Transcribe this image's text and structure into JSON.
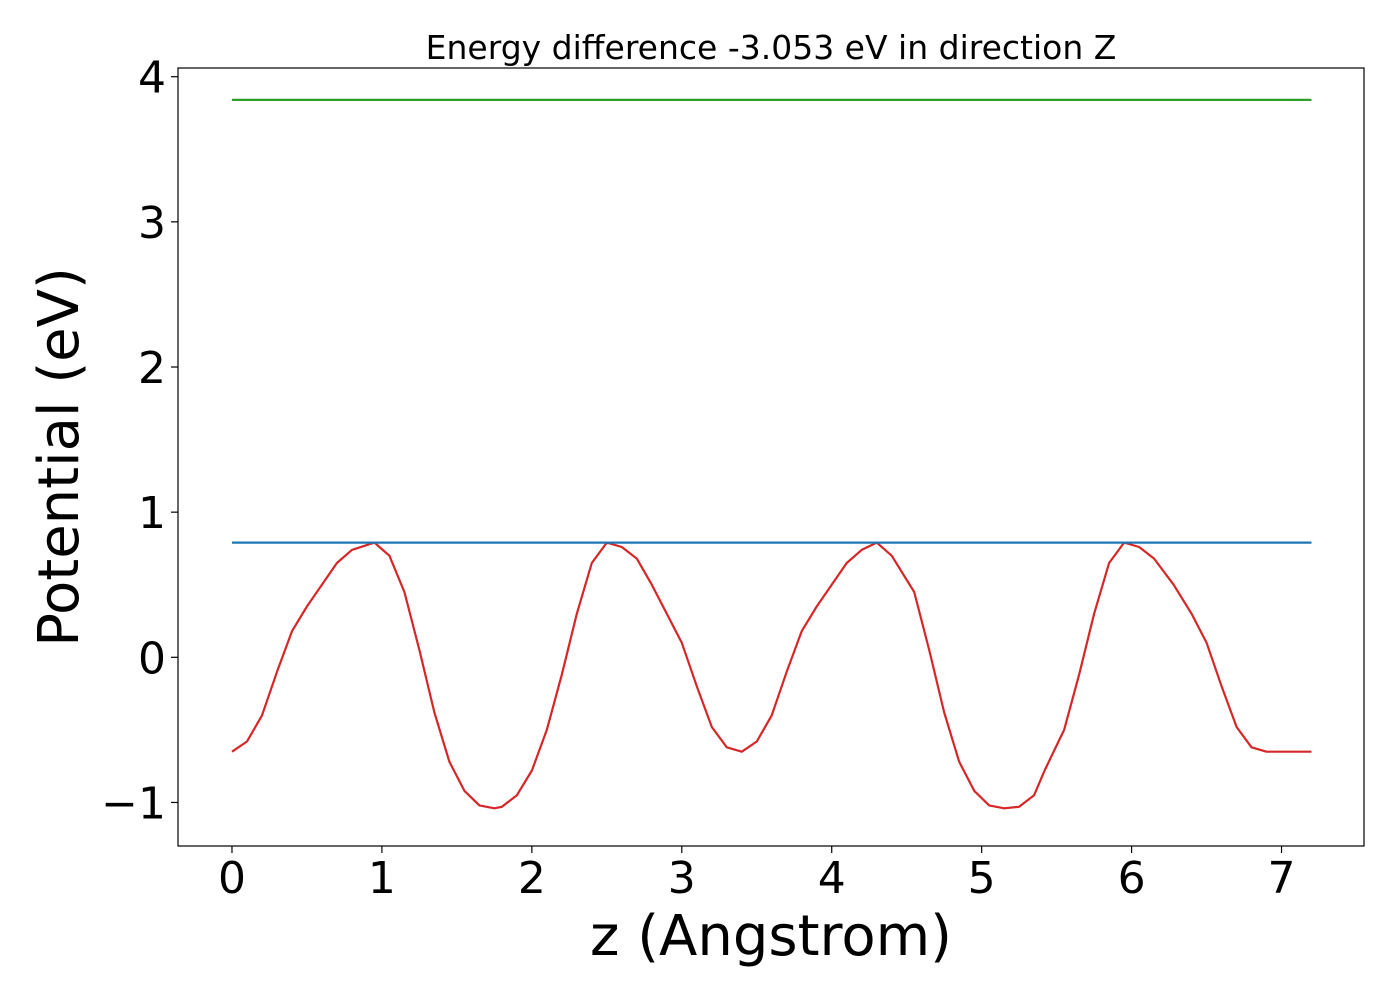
{
  "chart_data": {
    "type": "line",
    "title": "Energy difference -3.053 eV in direction Z",
    "xlabel": "z (Angstrom)",
    "ylabel": "Potential (eV)",
    "xlim": [
      -0.36,
      7.55
    ],
    "ylim": [
      -1.3,
      4.06
    ],
    "grid": false,
    "xticks": [
      0,
      1,
      2,
      3,
      4,
      5,
      6,
      7
    ],
    "xtick_labels": [
      "0",
      "1",
      "2",
      "3",
      "4",
      "5",
      "6",
      "7"
    ],
    "yticks": [
      -1,
      0,
      1,
      2,
      3,
      4
    ],
    "ytick_labels": [
      "−1",
      "0",
      "1",
      "2",
      "3",
      "4"
    ],
    "series": [
      {
        "color": "#d62728",
        "x": [
          0.0,
          0.1,
          0.2,
          0.3,
          0.4,
          0.5,
          0.6,
          0.7,
          0.8,
          0.95,
          1.05,
          1.15,
          1.25,
          1.35,
          1.45,
          1.55,
          1.65,
          1.75,
          1.8,
          1.9,
          2.0,
          2.1,
          2.2,
          2.3,
          2.4,
          2.5,
          2.6,
          2.7,
          2.8,
          2.9,
          3.0,
          3.1,
          3.2,
          3.3,
          3.4,
          3.5,
          3.6,
          3.7,
          3.8,
          3.9,
          4.0,
          4.1,
          4.2,
          4.3,
          4.4,
          4.55,
          4.65,
          4.75,
          4.85,
          4.95,
          5.05,
          5.15,
          5.25,
          5.35,
          5.42,
          5.55,
          5.65,
          5.75,
          5.85,
          5.95,
          6.05,
          6.15,
          6.28,
          6.4,
          6.5,
          6.6,
          6.7,
          6.8,
          6.9,
          7.0,
          7.1,
          7.2
        ],
        "y": [
          -0.65,
          -0.58,
          -0.4,
          -0.1,
          0.18,
          0.35,
          0.5,
          0.65,
          0.74,
          0.79,
          0.7,
          0.45,
          0.05,
          -0.38,
          -0.72,
          -0.92,
          -1.02,
          -1.04,
          -1.03,
          -0.95,
          -0.78,
          -0.5,
          -0.12,
          0.3,
          0.65,
          0.79,
          0.76,
          0.68,
          0.5,
          0.3,
          0.1,
          -0.2,
          -0.48,
          -0.62,
          -0.65,
          -0.58,
          -0.4,
          -0.1,
          0.18,
          0.35,
          0.5,
          0.65,
          0.74,
          0.79,
          0.7,
          0.45,
          0.05,
          -0.38,
          -0.72,
          -0.92,
          -1.02,
          -1.04,
          -1.03,
          -0.95,
          -0.78,
          -0.5,
          -0.12,
          0.3,
          0.65,
          0.79,
          0.76,
          0.68,
          0.5,
          0.3,
          0.1,
          -0.2,
          -0.48,
          -0.62,
          -0.65,
          -0.65,
          -0.65,
          -0.65
        ]
      },
      {
        "color": "#1f77b4",
        "x": [
          0.0,
          7.2
        ],
        "y": [
          0.79,
          0.79
        ]
      },
      {
        "color": "#2ca02c",
        "x": [
          0.0,
          7.2
        ],
        "y": [
          3.84,
          3.84
        ]
      }
    ]
  }
}
